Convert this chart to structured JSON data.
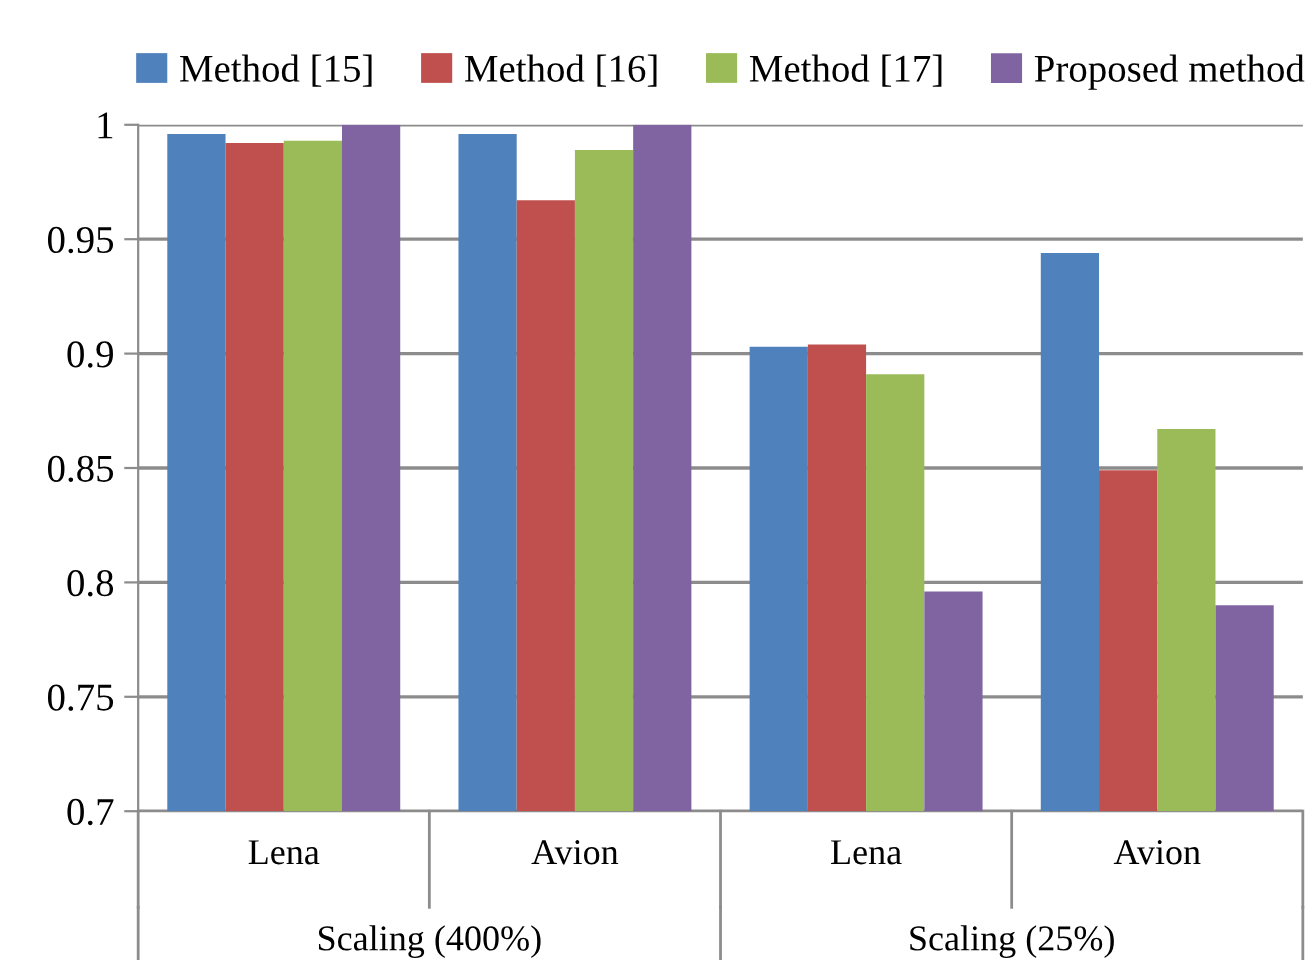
{
  "chart_data": {
    "type": "bar",
    "categories": [
      "Lena",
      "Avion",
      "Lena",
      "Avion"
    ],
    "series": [
      {
        "name": "Method [15]",
        "color": "#4f81bd",
        "values": [
          0.996,
          0.996,
          0.903,
          0.944
        ]
      },
      {
        "name": "Method [16]",
        "color": "#c0504d",
        "values": [
          0.992,
          0.967,
          0.904,
          0.849
        ]
      },
      {
        "name": "Method [17]",
        "color": "#9bbb59",
        "values": [
          0.993,
          0.989,
          0.891,
          0.867
        ]
      },
      {
        "name": "Proposed method",
        "color": "#8064a2",
        "values": [
          1.0,
          1.0,
          0.796,
          0.79
        ]
      }
    ],
    "annotations": [
      "Scaling (400%)",
      "Scaling (25%)"
    ],
    "ylim": [
      0.7,
      1
    ],
    "yticks": [
      {
        "value": 0.7,
        "label": "0.7"
      },
      {
        "value": 0.75,
        "label": "0.75"
      },
      {
        "value": 0.8,
        "label": "0.8"
      },
      {
        "value": 0.85,
        "label": "0.85"
      },
      {
        "value": 0.9,
        "label": "0.9"
      },
      {
        "value": 0.95,
        "label": "0.95"
      },
      {
        "value": 1,
        "label": "1"
      }
    ],
    "grid": "y",
    "legend": "top"
  }
}
